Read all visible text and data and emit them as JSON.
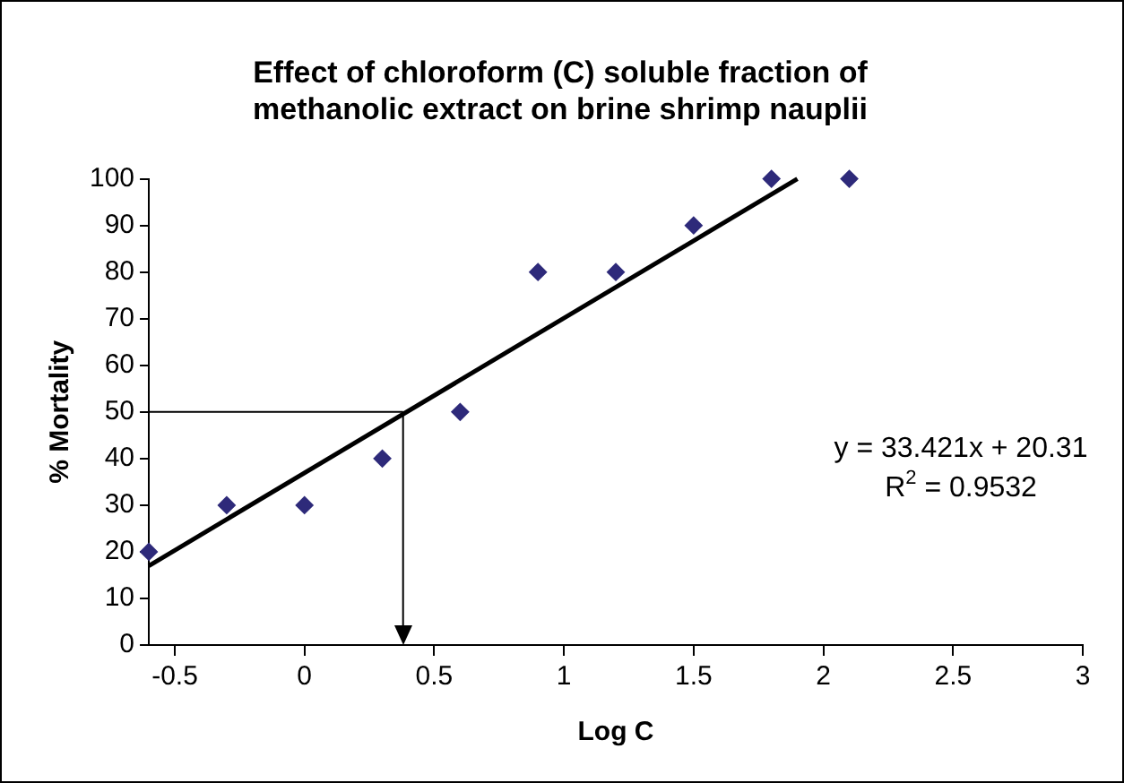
{
  "chart_data": {
    "type": "scatter",
    "title": [
      "Effect of chloroform (C) soluble fraction of",
      "methanolic extract on brine shrimp nauplii"
    ],
    "xlabel": "Log C",
    "ylabel": "% Mortality",
    "x": [
      -0.6,
      -0.3,
      0,
      0.3,
      0.6,
      0.9,
      1.2,
      1.5,
      1.8,
      2.1
    ],
    "series": [
      {
        "color": "#2e2a7a",
        "marker": "diamond",
        "values": [
          20,
          30,
          30,
          40,
          50,
          80,
          80,
          90,
          100,
          100
        ]
      },
      {
        "type": "line",
        "color": "#000000",
        "x": [
          -0.6,
          1.9
        ],
        "values": [
          17,
          100
        ],
        "marker": "none"
      }
    ],
    "ref_lines": [
      {
        "axis": "y",
        "value": 50,
        "color": "#000000"
      },
      {
        "axis": "x",
        "value": 0.38,
        "color": "#000000"
      }
    ],
    "annotations": [
      "y = 33.421x + 20.31",
      "R$^{2}$ = 0.9532"
    ],
    "xlim": [
      -0.6,
      3
    ],
    "xticks": [
      -0.5,
      0,
      0.5,
      1,
      1.5,
      2,
      2.5,
      3
    ],
    "ylim": [
      0,
      100
    ],
    "yticks": [
      0,
      10,
      20,
      30,
      40,
      50,
      60,
      70,
      80,
      90,
      100
    ],
    "grid": false,
    "legend": false
  }
}
